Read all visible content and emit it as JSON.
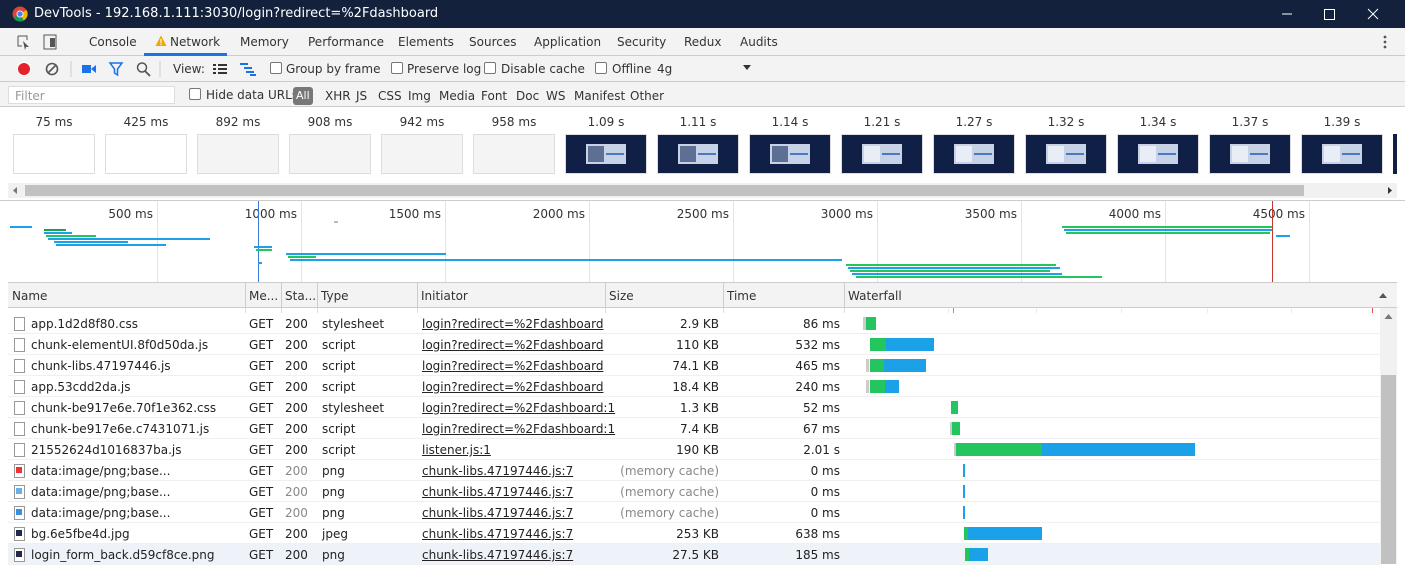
{
  "window": {
    "title": "DevTools - 192.168.1.111:3030/login?redirect=%2Fdashboard"
  },
  "tabs": {
    "items": [
      "Console",
      "Network",
      "Memory",
      "Performance",
      "Elements",
      "Sources",
      "Application",
      "Security",
      "Redux",
      "Audits"
    ],
    "active": 1
  },
  "toolbar": {
    "view": "View:",
    "group_by_frame": "Group by frame",
    "preserve_log": "Preserve log",
    "disable_cache": "Disable cache",
    "offline": "Offline",
    "throttle": "4g"
  },
  "filter": {
    "placeholder": "Filter",
    "hide_data_urls": "Hide data URLs",
    "all": "All",
    "types": [
      "XHR",
      "JS",
      "CSS",
      "Img",
      "Media",
      "Font",
      "Doc",
      "WS",
      "Manifest",
      "Other"
    ]
  },
  "filmstrip": {
    "times": [
      "75 ms",
      "425 ms",
      "892 ms",
      "908 ms",
      "942 ms",
      "958 ms",
      "1.09 s",
      "1.11 s",
      "1.14 s",
      "1.21 s",
      "1.27 s",
      "1.32 s",
      "1.34 s",
      "1.37 s",
      "1.39 s"
    ]
  },
  "overview": {
    "ticks": [
      "500 ms",
      "1000 ms",
      "1500 ms",
      "2000 ms",
      "2500 ms",
      "3000 ms",
      "3500 ms",
      "4000 ms",
      "4500 ms"
    ]
  },
  "table": {
    "columns": [
      "Name",
      "Me...",
      "Sta...",
      "Type",
      "Initiator",
      "Size",
      "Time",
      "Waterfall"
    ],
    "rows": [
      [
        "app.1d2d8f80.css",
        "GET",
        "200",
        "stylesheet",
        "login?redirect=%2Fdashboard",
        "2.9 KB",
        "86 ms"
      ],
      [
        "chunk-elementUI.8f0d50da.js",
        "GET",
        "200",
        "script",
        "login?redirect=%2Fdashboard",
        "110 KB",
        "532 ms"
      ],
      [
        "chunk-libs.47197446.js",
        "GET",
        "200",
        "script",
        "login?redirect=%2Fdashboard",
        "74.1 KB",
        "465 ms"
      ],
      [
        "app.53cdd2da.js",
        "GET",
        "200",
        "script",
        "login?redirect=%2Fdashboard",
        "18.4 KB",
        "240 ms"
      ],
      [
        "chunk-be917e6e.70f1e362.css",
        "GET",
        "200",
        "stylesheet",
        "login?redirect=%2Fdashboard:1",
        "1.3 KB",
        "52 ms"
      ],
      [
        "chunk-be917e6e.c7431071.js",
        "GET",
        "200",
        "script",
        "login?redirect=%2Fdashboard:1",
        "7.4 KB",
        "67 ms"
      ],
      [
        "21552624d1016837ba.js",
        "GET",
        "200",
        "script",
        "listener.js:1",
        "190 KB",
        "2.01 s"
      ],
      [
        "data:image/png;base...",
        "GET",
        "200",
        "png",
        "chunk-libs.47197446.js:7",
        "(memory cache)",
        "0 ms"
      ],
      [
        "data:image/png;base...",
        "GET",
        "200",
        "png",
        "chunk-libs.47197446.js:7",
        "(memory cache)",
        "0 ms"
      ],
      [
        "data:image/png;base...",
        "GET",
        "200",
        "png",
        "chunk-libs.47197446.js:7",
        "(memory cache)",
        "0 ms"
      ],
      [
        "bg.6e5fbe4d.jpg",
        "GET",
        "200",
        "jpeg",
        "chunk-libs.47197446.js:7",
        "253 KB",
        "638 ms"
      ],
      [
        "login_form_back.d59cf8ce.png",
        "GET",
        "200",
        "png",
        "chunk-libs.47197446.js:7",
        "27.5 KB",
        "185 ms"
      ]
    ]
  }
}
